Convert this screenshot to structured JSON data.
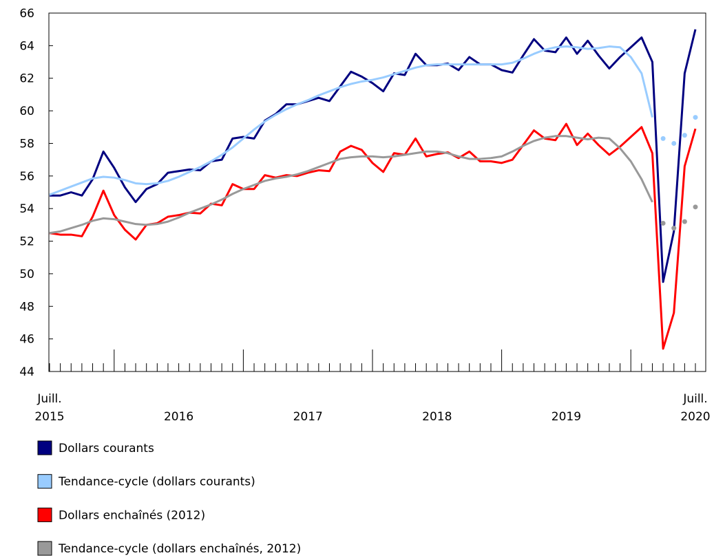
{
  "chart_data": {
    "type": "line",
    "categories": [
      "Juill. 2015",
      null,
      null,
      null,
      null,
      null,
      null,
      null,
      null,
      null,
      null,
      null,
      "2016",
      null,
      null,
      null,
      null,
      null,
      null,
      null,
      null,
      null,
      null,
      null,
      "2017",
      null,
      null,
      null,
      null,
      null,
      null,
      null,
      null,
      null,
      null,
      null,
      "2018",
      null,
      null,
      null,
      null,
      null,
      null,
      null,
      null,
      null,
      null,
      null,
      "2019",
      null,
      null,
      null,
      null,
      null,
      null,
      null,
      null,
      null,
      null,
      null,
      "Juill. 2020"
    ],
    "ylim": [
      44,
      66
    ],
    "yticks": [
      44,
      46,
      48,
      50,
      52,
      54,
      56,
      58,
      60,
      62,
      64,
      66
    ],
    "series": [
      {
        "name": "Dollars courants",
        "color": "#000080",
        "values": [
          54.8,
          54.8,
          55.0,
          54.8,
          55.8,
          57.5,
          56.5,
          55.3,
          54.4,
          55.2,
          55.5,
          56.2,
          56.3,
          56.4,
          56.35,
          56.9,
          57.0,
          58.3,
          58.4,
          58.3,
          59.4,
          59.8,
          60.4,
          60.4,
          60.6,
          60.8,
          60.6,
          61.5,
          62.4,
          62.1,
          61.7,
          61.2,
          62.3,
          62.2,
          63.5,
          62.8,
          62.8,
          62.9,
          62.5,
          63.3,
          62.85,
          62.85,
          62.5,
          62.35,
          63.4,
          64.4,
          63.7,
          63.6,
          64.5,
          63.5,
          64.3,
          63.4,
          62.6,
          63.3,
          63.9,
          64.5,
          63.0,
          49.5,
          52.6,
          62.3,
          65.0
        ]
      },
      {
        "name": "Tendance-cycle (dollars courants)",
        "color": "#99ccff",
        "values": [
          54.85,
          55.1,
          55.35,
          55.6,
          55.85,
          55.95,
          55.9,
          55.75,
          55.55,
          55.5,
          55.55,
          55.7,
          55.95,
          56.25,
          56.55,
          56.9,
          57.3,
          57.75,
          58.3,
          58.85,
          59.35,
          59.75,
          60.1,
          60.4,
          60.65,
          60.95,
          61.2,
          61.45,
          61.65,
          61.8,
          61.9,
          62.05,
          62.25,
          62.45,
          62.65,
          62.8,
          62.85,
          62.85,
          62.85,
          62.85,
          62.85,
          62.85,
          62.85,
          62.95,
          63.2,
          63.5,
          63.75,
          63.9,
          63.95,
          63.9,
          63.8,
          63.85,
          63.95,
          63.9,
          63.3,
          62.3,
          59.6,
          null,
          null,
          null,
          null
        ],
        "dot_values": [
          null,
          null,
          null,
          null,
          null,
          null,
          null,
          null,
          null,
          null,
          null,
          null,
          null,
          null,
          null,
          null,
          null,
          null,
          null,
          null,
          null,
          null,
          null,
          null,
          null,
          null,
          null,
          null,
          null,
          null,
          null,
          null,
          null,
          null,
          null,
          null,
          null,
          null,
          null,
          null,
          null,
          null,
          null,
          null,
          null,
          null,
          null,
          null,
          null,
          null,
          null,
          null,
          null,
          null,
          null,
          null,
          null,
          58.3,
          58.0,
          58.5,
          59.6
        ]
      },
      {
        "name": "Dollars enchaînés (2012)",
        "color": "#ff0000",
        "values": [
          52.5,
          52.4,
          52.4,
          52.3,
          53.5,
          55.1,
          53.6,
          52.7,
          52.1,
          53.0,
          53.1,
          53.5,
          53.6,
          53.75,
          53.7,
          54.3,
          54.2,
          55.5,
          55.2,
          55.2,
          56.05,
          55.9,
          56.05,
          56.0,
          56.2,
          56.35,
          56.3,
          57.5,
          57.85,
          57.6,
          56.8,
          56.25,
          57.4,
          57.3,
          58.3,
          57.2,
          57.35,
          57.45,
          57.1,
          57.5,
          56.9,
          56.9,
          56.8,
          57.0,
          57.9,
          58.8,
          58.3,
          58.2,
          59.2,
          57.9,
          58.6,
          57.9,
          57.3,
          57.8,
          58.4,
          59.0,
          57.4,
          45.4,
          47.6,
          56.6,
          58.9
        ]
      },
      {
        "name": "Tendance-cycle (dollars enchaînés, 2012)",
        "color": "#999999",
        "values": [
          52.5,
          52.6,
          52.8,
          53.0,
          53.25,
          53.4,
          53.35,
          53.2,
          53.05,
          53.0,
          53.05,
          53.2,
          53.45,
          53.75,
          54.0,
          54.25,
          54.55,
          54.9,
          55.2,
          55.45,
          55.7,
          55.85,
          55.95,
          56.1,
          56.3,
          56.55,
          56.8,
          57.05,
          57.15,
          57.2,
          57.2,
          57.15,
          57.2,
          57.3,
          57.4,
          57.5,
          57.5,
          57.4,
          57.2,
          57.05,
          57.05,
          57.1,
          57.2,
          57.5,
          57.85,
          58.15,
          58.35,
          58.45,
          58.45,
          58.35,
          58.25,
          58.35,
          58.3,
          57.7,
          56.9,
          55.8,
          54.4,
          null,
          null,
          null,
          null
        ],
        "dot_values": [
          null,
          null,
          null,
          null,
          null,
          null,
          null,
          null,
          null,
          null,
          null,
          null,
          null,
          null,
          null,
          null,
          null,
          null,
          null,
          null,
          null,
          null,
          null,
          null,
          null,
          null,
          null,
          null,
          null,
          null,
          null,
          null,
          null,
          null,
          null,
          null,
          null,
          null,
          null,
          null,
          null,
          null,
          null,
          null,
          null,
          null,
          null,
          null,
          null,
          null,
          null,
          null,
          null,
          null,
          null,
          null,
          null,
          53.1,
          52.8,
          53.2,
          54.1
        ]
      }
    ]
  }
}
